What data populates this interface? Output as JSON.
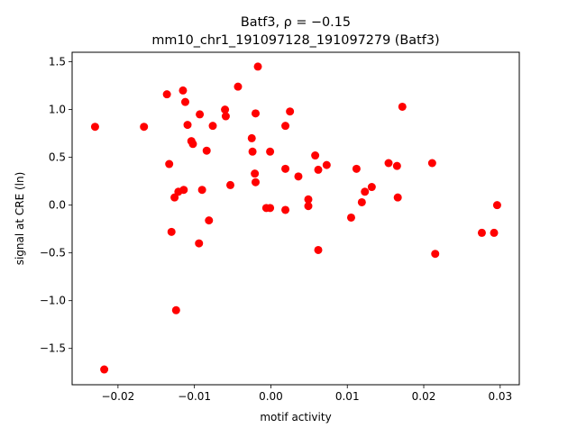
{
  "chart_data": {
    "type": "scatter",
    "title_line1": "Batf3, ρ = −0.15",
    "title_line2": "mm10_chr1_191097128_191097279 (Batf3)",
    "xlabel": "motif activity",
    "ylabel": "signal at CRE (ln)",
    "xlim": [
      -0.026,
      0.0325
    ],
    "ylim": [
      -1.88,
      1.6
    ],
    "xticks": [
      -0.02,
      -0.01,
      0.0,
      0.01,
      0.02,
      0.03
    ],
    "xtick_labels": [
      "−0.02",
      "−0.01",
      "0.00",
      "0.01",
      "0.02",
      "0.03"
    ],
    "yticks": [
      -1.5,
      -1.0,
      -0.5,
      0.0,
      0.5,
      1.0,
      1.5
    ],
    "ytick_labels": [
      "−1.5",
      "−1.0",
      "−0.5",
      "0.0",
      "0.5",
      "1.0",
      "1.5"
    ],
    "grid": false,
    "marker_color": "#ff0000",
    "points": [
      {
        "x": -0.023,
        "y": 0.82
      },
      {
        "x": -0.0218,
        "y": -1.72
      },
      {
        "x": -0.0166,
        "y": 0.82
      },
      {
        "x": -0.0136,
        "y": 1.16
      },
      {
        "x": -0.0133,
        "y": 0.43
      },
      {
        "x": -0.013,
        "y": -0.28
      },
      {
        "x": -0.0126,
        "y": 0.08
      },
      {
        "x": -0.0124,
        "y": -1.1
      },
      {
        "x": -0.0121,
        "y": 0.14
      },
      {
        "x": -0.0115,
        "y": 1.2
      },
      {
        "x": -0.0114,
        "y": 0.16
      },
      {
        "x": -0.0112,
        "y": 1.08
      },
      {
        "x": -0.0109,
        "y": 0.84
      },
      {
        "x": -0.0104,
        "y": 0.67
      },
      {
        "x": -0.0102,
        "y": 0.64
      },
      {
        "x": -0.0094,
        "y": -0.4
      },
      {
        "x": -0.0093,
        "y": 0.95
      },
      {
        "x": -0.009,
        "y": 0.16
      },
      {
        "x": -0.0084,
        "y": 0.57
      },
      {
        "x": -0.0081,
        "y": -0.16
      },
      {
        "x": -0.0076,
        "y": 0.83
      },
      {
        "x": -0.006,
        "y": 1.0
      },
      {
        "x": -0.0059,
        "y": 0.93
      },
      {
        "x": -0.0053,
        "y": 0.21
      },
      {
        "x": -0.0043,
        "y": 1.24
      },
      {
        "x": -0.0025,
        "y": 0.7
      },
      {
        "x": -0.0024,
        "y": 0.56
      },
      {
        "x": -0.002,
        "y": 0.96
      },
      {
        "x": -0.0021,
        "y": 0.33
      },
      {
        "x": -0.002,
        "y": 0.24
      },
      {
        "x": -0.0017,
        "y": 1.45
      },
      {
        "x": -0.0006,
        "y": -0.03
      },
      {
        "x": -0.0001,
        "y": -0.03
      },
      {
        "x": -0.0001,
        "y": 0.56
      },
      {
        "x": 0.0019,
        "y": 0.83
      },
      {
        "x": 0.0019,
        "y": 0.38
      },
      {
        "x": 0.0019,
        "y": -0.05
      },
      {
        "x": 0.0025,
        "y": 0.98
      },
      {
        "x": 0.0036,
        "y": 0.3
      },
      {
        "x": 0.0049,
        "y": 0.06
      },
      {
        "x": 0.0049,
        "y": -0.01
      },
      {
        "x": 0.0058,
        "y": 0.52
      },
      {
        "x": 0.0062,
        "y": 0.37
      },
      {
        "x": 0.0062,
        "y": -0.47
      },
      {
        "x": 0.0073,
        "y": 0.42
      },
      {
        "x": 0.0105,
        "y": -0.13
      },
      {
        "x": 0.0112,
        "y": 0.38
      },
      {
        "x": 0.0119,
        "y": 0.03
      },
      {
        "x": 0.0123,
        "y": 0.14
      },
      {
        "x": 0.0132,
        "y": 0.19
      },
      {
        "x": 0.0154,
        "y": 0.44
      },
      {
        "x": 0.0165,
        "y": 0.41
      },
      {
        "x": 0.0166,
        "y": 0.08
      },
      {
        "x": 0.0172,
        "y": 1.03
      },
      {
        "x": 0.0211,
        "y": 0.44
      },
      {
        "x": 0.0215,
        "y": -0.51
      },
      {
        "x": 0.0276,
        "y": -0.29
      },
      {
        "x": 0.0292,
        "y": -0.29
      },
      {
        "x": 0.0296,
        "y": 0.0
      }
    ]
  }
}
